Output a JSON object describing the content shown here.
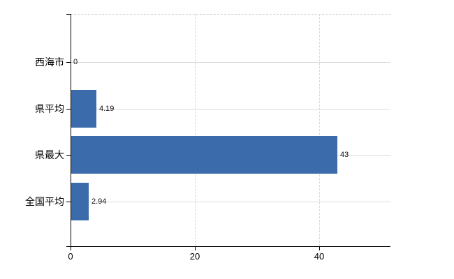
{
  "chart_data": {
    "type": "bar",
    "orientation": "horizontal",
    "title": "",
    "xlabel": "",
    "ylabel": "",
    "categories": [
      "西海市",
      "県平均",
      "県最大",
      "全国平均"
    ],
    "values": [
      0,
      4.19,
      43,
      2.94
    ],
    "value_labels": [
      "0",
      "4.19",
      "43",
      "2.94"
    ],
    "x_ticks": [
      0,
      20,
      40
    ],
    "x_tick_labels": [
      "0",
      "20",
      "40"
    ],
    "xlim": [
      0,
      51.5
    ],
    "grid": "horizontal solid per category, vertical dashed at ticks, dashed top frame",
    "legend_position": "none",
    "bar_color": "#3b6bab",
    "h_grid_color": "#d7dfd7",
    "v_grid_color": "#d8d8d8",
    "axis_color": "#000000"
  }
}
